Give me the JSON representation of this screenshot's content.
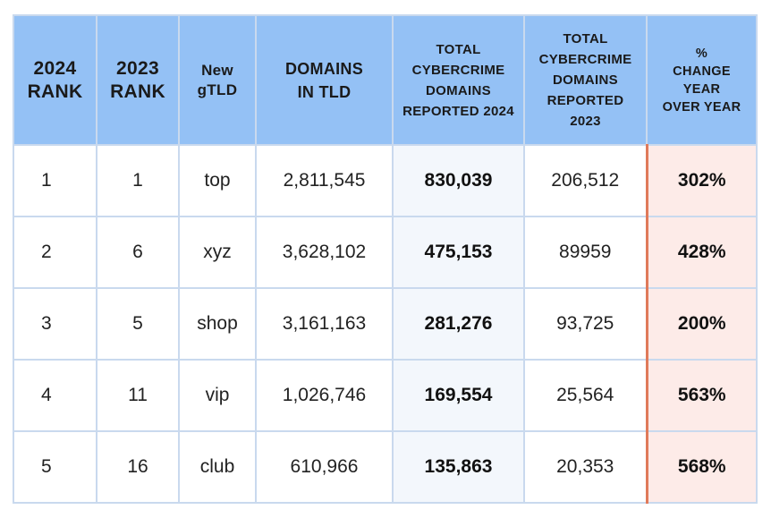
{
  "chart_data": {
    "type": "table",
    "headers": [
      "2024 RANK",
      "2023 RANK",
      "New gTLD",
      "DOMAINS IN TLD",
      "TOTAL CYBERCRIME DOMAINS REPORTED 2024",
      "TOTAL CYBERCRIME DOMAINS REPORTED 2023",
      "% CHANGE YEAR OVER YEAR"
    ],
    "rows": [
      [
        "1",
        "1",
        "top",
        "2,811,545",
        "830,039",
        "206,512",
        "302%"
      ],
      [
        "2",
        "6",
        "xyz",
        "3,628,102",
        "475,153",
        "89959",
        "428%"
      ],
      [
        "3",
        "5",
        "shop",
        "3,161,163",
        "281,276",
        "93,725",
        "200%"
      ],
      [
        "4",
        "11",
        "vip",
        "1,026,746",
        "169,554",
        "25,564",
        "563%"
      ],
      [
        "5",
        "16",
        "club",
        "610,966",
        "135,863",
        "20,353",
        "568%"
      ]
    ]
  },
  "table": {
    "header": {
      "rank_2024": "2024\nRANK",
      "rank_2023": "2023\nRANK",
      "gtld": "New\ngTLD",
      "domains": "DOMAINS\nIN TLD",
      "reported_2024": "TOTAL\nCYBERCRIME\nDOMAINS\nREPORTED 2024",
      "reported_2023": "TOTAL\nCYBERCRIME\nDOMAINS\nREPORTED\n2023",
      "change": "%\nCHANGE\nYEAR\nOVER YEAR"
    }
  },
  "colors": {
    "header_bg": "#94c1f5",
    "grid": "#c9d9ee",
    "highlight_col_bg": "#f3f7fc",
    "change_col_bg": "#fdebe8",
    "change_col_rule": "#e07a5a"
  }
}
